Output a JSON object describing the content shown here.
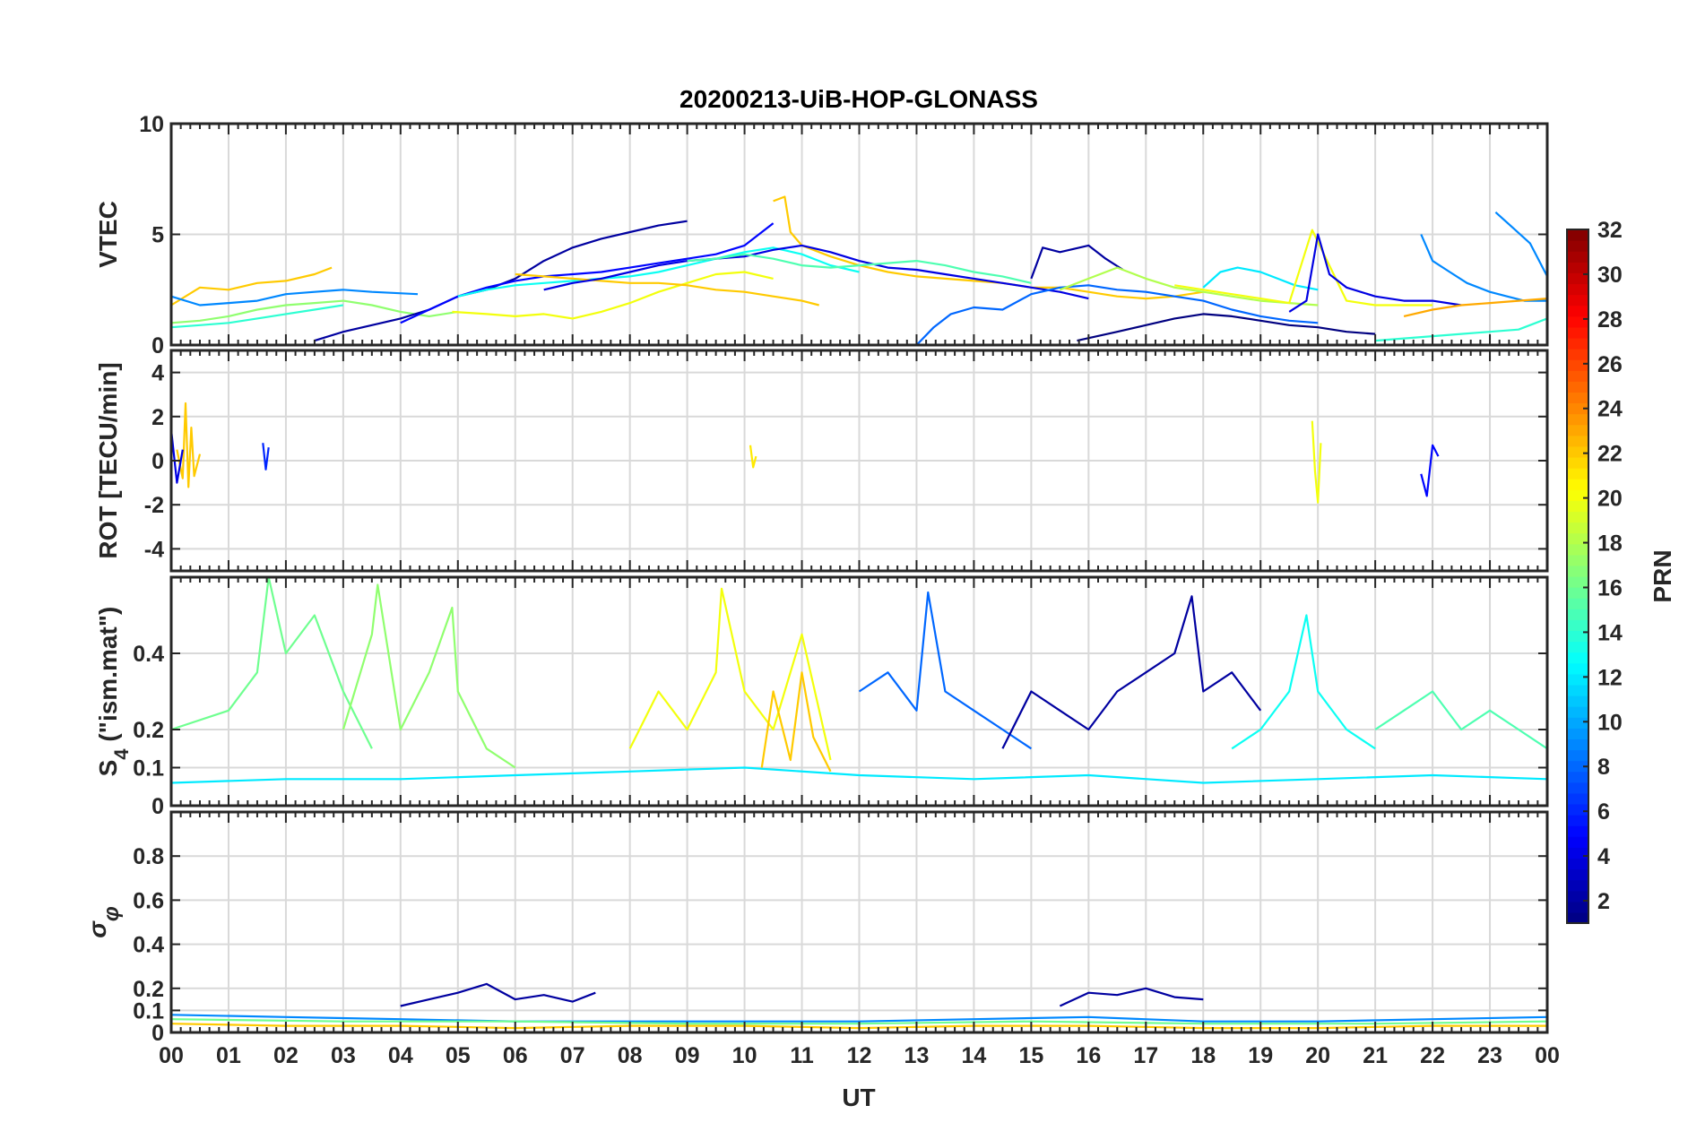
{
  "title": "20200213-UiB-HOP-GLONASS",
  "xlabel": "UT",
  "x_tick_labels": [
    "00",
    "01",
    "02",
    "03",
    "04",
    "05",
    "06",
    "07",
    "08",
    "09",
    "10",
    "11",
    "12",
    "13",
    "14",
    "15",
    "16",
    "17",
    "18",
    "19",
    "20",
    "21",
    "22",
    "23",
    "00"
  ],
  "colorbar": {
    "label": "PRN",
    "colormap": "jet",
    "range": [
      1,
      32
    ],
    "tick_labels": [
      "2",
      "4",
      "6",
      "8",
      "10",
      "12",
      "14",
      "16",
      "18",
      "20",
      "22",
      "24",
      "26",
      "28",
      "30",
      "32"
    ]
  },
  "chart_data": [
    {
      "type": "line",
      "name": "VTEC panel",
      "ylabel": "VTEC",
      "xlim": [
        0,
        24
      ],
      "ylim": [
        0,
        10
      ],
      "y_tick_labels": [
        "0",
        "5",
        "10"
      ],
      "grid": true,
      "series": [
        {
          "prn": 22,
          "x": [
            0,
            0.5,
            1,
            1.5,
            2,
            2.5,
            2.8
          ],
          "y": [
            1.8,
            2.6,
            2.5,
            2.8,
            2.9,
            3.2,
            3.5
          ]
        },
        {
          "prn": 9,
          "x": [
            0,
            0.5,
            1,
            1.5,
            2,
            2.5,
            3,
            3.5,
            4.3
          ],
          "y": [
            2.2,
            1.8,
            1.9,
            2.0,
            2.3,
            2.4,
            2.5,
            2.4,
            2.3
          ]
        },
        {
          "prn": 14,
          "x": [
            0,
            0.5,
            1,
            1.5,
            2,
            2.5,
            3
          ],
          "y": [
            0.8,
            0.9,
            1.0,
            1.2,
            1.4,
            1.6,
            1.8
          ]
        },
        {
          "prn": 17,
          "x": [
            0,
            0.5,
            1,
            1.5,
            2,
            2.5,
            3,
            3.5,
            4,
            4.5,
            5
          ],
          "y": [
            1.0,
            1.1,
            1.3,
            1.6,
            1.8,
            1.9,
            2.0,
            1.8,
            1.5,
            1.3,
            1.5
          ]
        },
        {
          "prn": 2,
          "x": [
            2.5,
            3,
            3.5,
            4,
            4.5,
            5,
            5.5,
            6,
            6.5,
            7,
            7.5,
            8,
            8.5,
            9
          ],
          "y": [
            0.2,
            0.6,
            0.9,
            1.2,
            1.6,
            2.2,
            2.5,
            3.0,
            3.8,
            4.4,
            4.8,
            5.1,
            5.4,
            5.6
          ]
        },
        {
          "prn": 20,
          "x": [
            4.9,
            5.5,
            6,
            6.5,
            7,
            7.5,
            8,
            8.5,
            9,
            9.5,
            10,
            10.5
          ],
          "y": [
            1.5,
            1.4,
            1.3,
            1.4,
            1.2,
            1.5,
            1.9,
            2.4,
            2.8,
            3.2,
            3.3,
            3.0
          ]
        },
        {
          "prn": 5,
          "x": [
            4,
            4.5,
            5,
            5.5,
            6,
            6.5,
            7,
            7.5,
            8,
            8.5,
            9,
            9.5,
            10,
            10.5
          ],
          "y": [
            1.0,
            1.6,
            2.2,
            2.6,
            2.9,
            3.1,
            3.2,
            3.3,
            3.5,
            3.7,
            3.9,
            4.1,
            4.5,
            5.5
          ]
        },
        {
          "prn": 13,
          "x": [
            5,
            5.5,
            6,
            6.5,
            7,
            7.5,
            8,
            8.5,
            9,
            9.5,
            10,
            10.5,
            11,
            11.5,
            12
          ],
          "y": [
            2.2,
            2.5,
            2.7,
            2.8,
            2.9,
            3.0,
            3.1,
            3.3,
            3.6,
            3.9,
            4.2,
            4.4,
            4.1,
            3.6,
            3.3
          ]
        },
        {
          "prn": 22,
          "x": [
            10.5,
            10.7,
            10.8,
            11,
            11.5,
            12,
            12.5,
            13,
            13.5,
            14,
            14.5,
            15,
            15.5,
            16,
            16.5,
            17,
            17.5,
            18
          ],
          "y": [
            6.5,
            6.7,
            5.1,
            4.5,
            4.0,
            3.6,
            3.3,
            3.1,
            3.0,
            2.9,
            2.8,
            2.6,
            2.6,
            2.4,
            2.2,
            2.1,
            2.2,
            2.4
          ]
        },
        {
          "prn": 22,
          "x": [
            6,
            6.5,
            7,
            7.5,
            8,
            8.5,
            9,
            9.5,
            10,
            10.5,
            11,
            11.3
          ],
          "y": [
            3.2,
            3.1,
            3.0,
            2.9,
            2.8,
            2.8,
            2.7,
            2.5,
            2.4,
            2.2,
            2.0,
            1.8
          ]
        },
        {
          "prn": 4,
          "x": [
            6.5,
            7,
            7.5,
            8,
            8.5,
            9,
            9.5,
            10,
            10.5,
            11,
            11.5,
            12,
            12.5,
            13,
            13.5,
            14,
            14.5,
            15,
            15.5,
            16
          ],
          "y": [
            2.5,
            2.8,
            3.0,
            3.3,
            3.6,
            3.8,
            3.9,
            4.0,
            4.3,
            4.5,
            4.2,
            3.8,
            3.5,
            3.4,
            3.2,
            3.0,
            2.8,
            2.6,
            2.4,
            2.1
          ]
        },
        {
          "prn": 15,
          "x": [
            9,
            9.5,
            10,
            10.5,
            11,
            11.5,
            12,
            12.5,
            13,
            13.5,
            14,
            14.5,
            15
          ],
          "y": [
            3.8,
            3.9,
            4.1,
            3.9,
            3.6,
            3.5,
            3.6,
            3.7,
            3.8,
            3.6,
            3.3,
            3.1,
            2.8
          ]
        },
        {
          "prn": 8,
          "x": [
            13,
            13.3,
            13.6,
            14,
            14.5,
            15,
            15.5,
            16,
            16.5,
            17,
            17.5,
            18,
            18.5,
            19,
            19.5,
            20
          ],
          "y": [
            0.0,
            0.8,
            1.4,
            1.7,
            1.6,
            2.3,
            2.6,
            2.7,
            2.5,
            2.4,
            2.2,
            2.0,
            1.6,
            1.3,
            1.1,
            1.0
          ]
        },
        {
          "prn": 2,
          "x": [
            15,
            15.2,
            15.5,
            16,
            16.3,
            16.6
          ],
          "y": [
            3.0,
            4.4,
            4.2,
            4.5,
            3.9,
            3.4
          ]
        },
        {
          "prn": 18,
          "x": [
            15.5,
            16,
            16.5,
            17,
            17.5,
            18,
            18.5,
            19,
            19.5,
            20
          ],
          "y": [
            2.5,
            3.0,
            3.5,
            3.0,
            2.6,
            2.4,
            2.2,
            2.0,
            1.9,
            1.8
          ]
        },
        {
          "prn": 12,
          "x": [
            18,
            18.3,
            18.6,
            19,
            19.3,
            19.6,
            20
          ],
          "y": [
            2.6,
            3.3,
            3.5,
            3.3,
            3.0,
            2.7,
            2.5
          ]
        },
        {
          "prn": 20,
          "x": [
            17.5,
            18,
            18.5,
            19,
            19.5,
            19.9,
            20.5,
            21,
            21.5,
            22
          ],
          "y": [
            2.7,
            2.5,
            2.3,
            2.1,
            1.9,
            5.2,
            2.0,
            1.8,
            1.8,
            1.8
          ]
        },
        {
          "prn": 4,
          "x": [
            19.5,
            19.8,
            20,
            20.2,
            20.5,
            21,
            21.5,
            22,
            22.5
          ],
          "y": [
            1.5,
            2.0,
            5.0,
            3.2,
            2.6,
            2.2,
            2.0,
            2.0,
            1.8
          ]
        },
        {
          "prn": 1,
          "x": [
            15.8,
            16.5,
            17,
            17.5,
            18,
            18.5,
            19,
            19.5,
            20,
            20.5,
            21
          ],
          "y": [
            0.2,
            0.6,
            0.9,
            1.2,
            1.4,
            1.3,
            1.1,
            0.9,
            0.8,
            0.6,
            0.5
          ]
        },
        {
          "prn": 9,
          "x": [
            21.8,
            22,
            22.3,
            22.6,
            23,
            23.3,
            23.6,
            24
          ],
          "y": [
            5.0,
            3.8,
            3.3,
            2.8,
            2.4,
            2.2,
            2.0,
            2.0
          ]
        },
        {
          "prn": 9,
          "x": [
            23.1,
            23.4,
            23.7,
            24
          ],
          "y": [
            6.0,
            5.3,
            4.6,
            3.1
          ]
        },
        {
          "prn": 23,
          "x": [
            21.5,
            22,
            22.5,
            23,
            23.5,
            24
          ],
          "y": [
            1.3,
            1.6,
            1.8,
            1.9,
            2.0,
            2.1
          ]
        },
        {
          "prn": 14,
          "x": [
            21,
            21.5,
            22,
            22.5,
            23,
            23.5,
            24
          ],
          "y": [
            0.2,
            0.3,
            0.4,
            0.5,
            0.6,
            0.7,
            1.2
          ]
        }
      ]
    },
    {
      "type": "line",
      "name": "ROT panel",
      "ylabel": "ROT [TECU/min]",
      "xlim": [
        0,
        24
      ],
      "ylim": [
        -5,
        5
      ],
      "y_tick_labels": [
        "-4",
        "-2",
        "0",
        "2",
        "4"
      ],
      "grid": true,
      "series": [
        {
          "prn": 22,
          "x": [
            0.1,
            0.2,
            0.25,
            0.3,
            0.35,
            0.4,
            0.5
          ],
          "y": [
            0.5,
            -0.8,
            2.6,
            -1.2,
            1.5,
            -0.7,
            0.3
          ]
        },
        {
          "prn": 4,
          "x": [
            0,
            0.1,
            0.2
          ],
          "y": [
            1.4,
            -1.0,
            0.5
          ]
        },
        {
          "prn": 20,
          "x": [
            19.9,
            19.95,
            20,
            20.05
          ],
          "y": [
            1.8,
            -0.5,
            -1.9,
            0.8
          ]
        },
        {
          "prn": 5,
          "x": [
            21.8,
            21.9,
            22,
            22.1
          ],
          "y": [
            -0.6,
            -1.6,
            0.7,
            0.2
          ]
        },
        {
          "prn": 6,
          "x": [
            1.6,
            1.65,
            1.7
          ],
          "y": [
            0.8,
            -0.4,
            0.6
          ]
        },
        {
          "prn": 21,
          "x": [
            10.1,
            10.15,
            10.2
          ],
          "y": [
            0.7,
            -0.3,
            0.2
          ]
        }
      ]
    },
    {
      "type": "line",
      "name": "S4 panel",
      "ylabel": "S4 (\"ism.mat\")",
      "xlim": [
        0,
        24
      ],
      "ylim": [
        0,
        0.6
      ],
      "y_tick_labels": [
        "0",
        "0.1",
        "0.2",
        "0.4"
      ],
      "grid": true,
      "series": [
        {
          "prn": 16,
          "x": [
            0,
            1,
            1.5,
            1.7,
            2,
            2.5,
            3,
            3.5
          ],
          "y": [
            0.2,
            0.25,
            0.35,
            0.6,
            0.4,
            0.5,
            0.3,
            0.15
          ]
        },
        {
          "prn": 17,
          "x": [
            3,
            3.5,
            3.6,
            4,
            4.5,
            4.9,
            5,
            5.5,
            6
          ],
          "y": [
            0.2,
            0.45,
            0.58,
            0.2,
            0.35,
            0.52,
            0.3,
            0.15,
            0.1
          ]
        },
        {
          "prn": 20,
          "x": [
            8,
            8.5,
            9,
            9.5,
            9.6,
            10,
            10.5,
            11,
            11.5
          ],
          "y": [
            0.15,
            0.3,
            0.2,
            0.35,
            0.57,
            0.3,
            0.2,
            0.45,
            0.12
          ]
        },
        {
          "prn": 22,
          "x": [
            10.3,
            10.5,
            10.8,
            11,
            11.2,
            11.5
          ],
          "y": [
            0.1,
            0.3,
            0.12,
            0.35,
            0.18,
            0.09
          ]
        },
        {
          "prn": 8,
          "x": [
            12,
            12.5,
            13,
            13.2,
            13.5,
            14,
            14.5,
            15
          ],
          "y": [
            0.3,
            0.35,
            0.25,
            0.56,
            0.3,
            0.25,
            0.2,
            0.15
          ]
        },
        {
          "prn": 2,
          "x": [
            14.5,
            15,
            15.5,
            16,
            16.5,
            17,
            17.5,
            17.8,
            18,
            18.5,
            19
          ],
          "y": [
            0.15,
            0.3,
            0.25,
            0.2,
            0.3,
            0.35,
            0.4,
            0.55,
            0.3,
            0.35,
            0.25
          ]
        },
        {
          "prn": 13,
          "x": [
            18.5,
            19,
            19.5,
            19.8,
            20,
            20.5,
            21
          ],
          "y": [
            0.15,
            0.2,
            0.3,
            0.5,
            0.3,
            0.2,
            0.15
          ]
        },
        {
          "prn": 15,
          "x": [
            21,
            21.5,
            22,
            22.5,
            23,
            23.5,
            24
          ],
          "y": [
            0.2,
            0.25,
            0.3,
            0.2,
            0.25,
            0.2,
            0.15
          ]
        },
        {
          "prn": 12,
          "x": [
            0,
            2,
            4,
            6,
            8,
            10,
            12,
            14,
            16,
            18,
            20,
            22,
            24
          ],
          "y": [
            0.06,
            0.07,
            0.07,
            0.08,
            0.09,
            0.1,
            0.08,
            0.07,
            0.08,
            0.06,
            0.07,
            0.08,
            0.07
          ]
        }
      ]
    },
    {
      "type": "line",
      "name": "Sigma-phi panel",
      "ylabel": "σφ",
      "xlim": [
        0,
        24
      ],
      "ylim": [
        0,
        1
      ],
      "y_tick_labels": [
        "0",
        "0.1",
        "0.2",
        "0.4",
        "0.6",
        "0.8"
      ],
      "grid": true,
      "series": [
        {
          "prn": 2,
          "x": [
            4,
            4.5,
            5,
            5.5,
            6,
            6.5,
            7,
            7.4
          ],
          "y": [
            0.12,
            0.15,
            0.18,
            0.22,
            0.15,
            0.17,
            0.14,
            0.18
          ]
        },
        {
          "prn": 2,
          "x": [
            15.5,
            16,
            16.5,
            17,
            17.5,
            18
          ],
          "y": [
            0.12,
            0.18,
            0.17,
            0.2,
            0.16,
            0.15
          ]
        },
        {
          "prn": 9,
          "x": [
            0,
            2,
            4,
            6,
            8,
            10,
            12,
            14,
            16,
            18,
            20,
            22,
            24
          ],
          "y": [
            0.08,
            0.07,
            0.06,
            0.05,
            0.05,
            0.05,
            0.05,
            0.06,
            0.07,
            0.05,
            0.05,
            0.06,
            0.07
          ]
        },
        {
          "prn": 22,
          "x": [
            0,
            2,
            4,
            6,
            8,
            10,
            12,
            14,
            16,
            18,
            20,
            22,
            24
          ],
          "y": [
            0.04,
            0.03,
            0.03,
            0.02,
            0.03,
            0.03,
            0.02,
            0.03,
            0.03,
            0.02,
            0.02,
            0.03,
            0.03
          ]
        },
        {
          "prn": 16,
          "x": [
            0,
            3,
            6,
            9,
            12,
            15,
            18,
            21,
            24
          ],
          "y": [
            0.06,
            0.05,
            0.05,
            0.04,
            0.04,
            0.05,
            0.04,
            0.04,
            0.05
          ]
        }
      ]
    }
  ]
}
